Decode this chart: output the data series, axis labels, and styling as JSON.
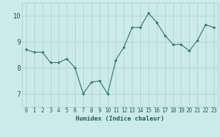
{
  "x": [
    0,
    1,
    2,
    3,
    4,
    5,
    6,
    7,
    8,
    9,
    10,
    11,
    12,
    13,
    14,
    15,
    16,
    17,
    18,
    19,
    20,
    21,
    22,
    23
  ],
  "y": [
    8.7,
    8.6,
    8.6,
    8.2,
    8.2,
    8.35,
    8.0,
    7.0,
    7.45,
    7.5,
    7.0,
    8.3,
    8.8,
    9.55,
    9.55,
    10.1,
    9.75,
    9.25,
    8.9,
    8.9,
    8.65,
    9.05,
    9.65,
    9.55
  ],
  "xlabel": "Humidex (Indice chaleur)",
  "ylim": [
    6.5,
    10.5
  ],
  "xlim": [
    -0.5,
    23.5
  ],
  "yticks": [
    7,
    8,
    9,
    10
  ],
  "xticks": [
    0,
    1,
    2,
    3,
    4,
    5,
    6,
    7,
    8,
    9,
    10,
    11,
    12,
    13,
    14,
    15,
    16,
    17,
    18,
    19,
    20,
    21,
    22,
    23
  ],
  "line_color": "#2e7d6e",
  "marker": "D",
  "marker_size": 1.8,
  "bg_color": "#cceaea",
  "grid_color": "#b0d0d0",
  "axis_bg": "#cceaea",
  "label_color": "#1a5c5c",
  "tick_color": "#1a5c5c",
  "font_family": "monospace",
  "xlabel_fontsize": 6.5,
  "tick_fontsize": 5.5,
  "ytick_fontsize": 7
}
